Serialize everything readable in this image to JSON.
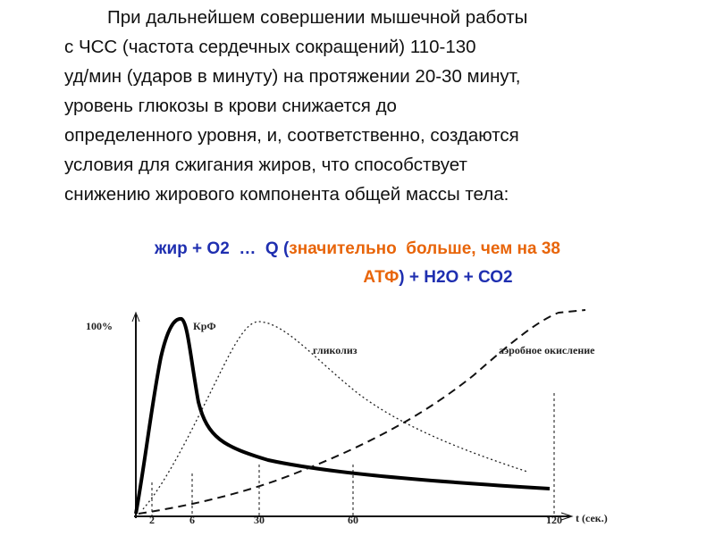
{
  "paragraph": {
    "lines": [
      "При дальнейшем совершении мышечной работы",
      "с ЧСС (частота сердечных сокращений) 110-130",
      "уд/мин (ударов в минуту) на протяжении 20-30 минут,",
      "уровень глюкозы в крови снижается до",
      "определенного уровня, и, соответственно, создаются",
      "условия для сжигания жиров, что способствует",
      "снижению жирового компонента общей массы тела:"
    ]
  },
  "formula": {
    "lines": [
      [
        {
          "text": "жир + О2  …  Q (",
          "color": "#1f2fb0"
        },
        {
          "text": "значительно  больше, чем на 38",
          "color": "#e8650a"
        }
      ],
      [
        {
          "text": "АТФ",
          "color": "#e8650a"
        },
        {
          "text": ") + Н2О + СО2",
          "color": "#1f2fb0"
        }
      ]
    ]
  },
  "figure": {
    "y_label": "100%",
    "x_label": "t (сек.)",
    "x_ticks": [
      "2",
      "6",
      "30",
      "60",
      "120"
    ],
    "curve_labels": [
      "КрФ",
      "гликолиз",
      "аэробное окисление"
    ]
  }
}
